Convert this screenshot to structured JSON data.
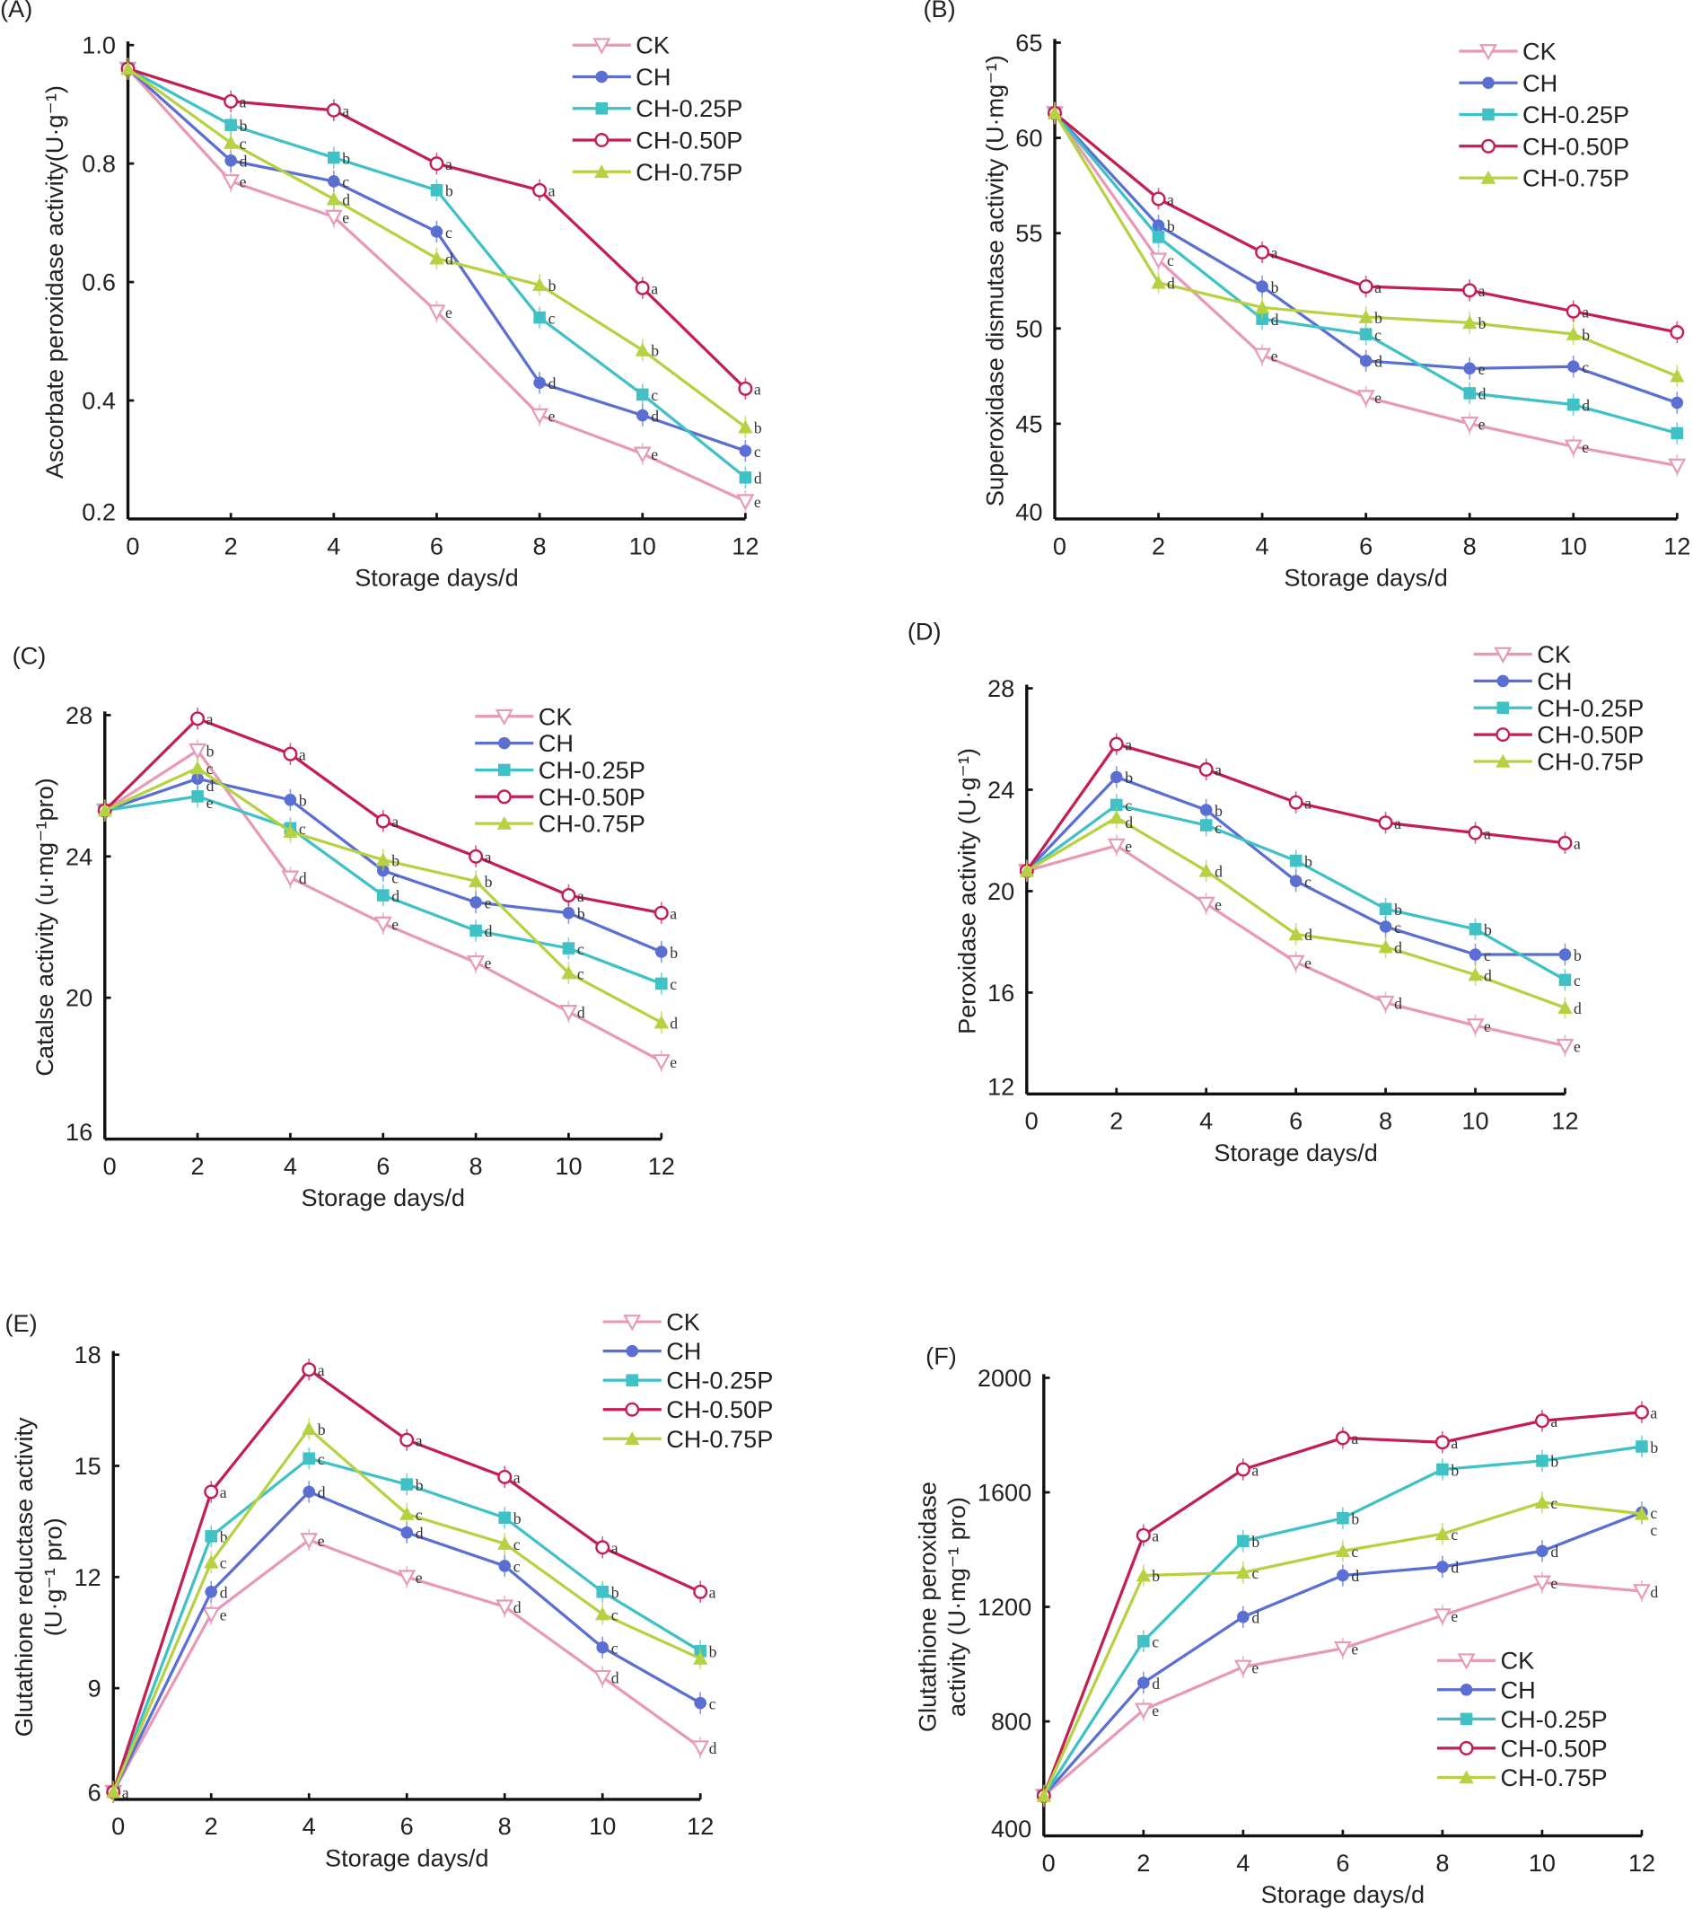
{
  "series_styles": [
    {
      "name": "CK",
      "color": "#e79ab8",
      "marker": "triangle-down-open"
    },
    {
      "name": "CH",
      "color": "#5b6fd3",
      "marker": "circle-filled"
    },
    {
      "name": "CH-0.25P",
      "color": "#3fc1c6",
      "marker": "square-filled"
    },
    {
      "name": "CH-0.50P",
      "color": "#c41f52",
      "marker": "circle-open"
    },
    {
      "name": "CH-0.75P",
      "color": "#b6d243",
      "marker": "triangle-up-filled"
    }
  ],
  "chart_data": [
    {
      "type": "line",
      "panel_label": "(A)",
      "xlabel": "Storage days/d",
      "ylabel": [
        "Ascorbate peroxidase activity(U·g⁻¹)"
      ],
      "x": [
        0,
        2,
        4,
        6,
        8,
        10,
        12
      ],
      "xticks": [
        "0",
        "2",
        "4",
        "6",
        "8",
        "10",
        "12"
      ],
      "ylim": [
        0.2,
        1.0
      ],
      "yticks": [
        "0.2",
        "0.4",
        "0.6",
        "0.8",
        "1.0"
      ],
      "legend": "top-right",
      "grid": false,
      "series": [
        {
          "name": "CK",
          "values": [
            0.96,
            0.77,
            0.71,
            0.55,
            0.375,
            0.31,
            0.23
          ],
          "letters": [
            "",
            "e",
            "e",
            "e",
            "e",
            "e",
            "e"
          ]
        },
        {
          "name": "CH",
          "values": [
            0.96,
            0.805,
            0.77,
            0.685,
            0.43,
            0.375,
            0.315
          ],
          "letters": [
            "",
            "d",
            "c",
            "c",
            "d",
            "d",
            "c"
          ]
        },
        {
          "name": "CH-0.25P",
          "values": [
            0.96,
            0.865,
            0.81,
            0.755,
            0.54,
            0.41,
            0.27
          ],
          "letters": [
            "",
            "b",
            "b",
            "b",
            "c",
            "c",
            "d"
          ]
        },
        {
          "name": "CH-0.50P",
          "values": [
            0.96,
            0.905,
            0.89,
            0.8,
            0.755,
            0.59,
            0.42
          ],
          "letters": [
            "",
            "a",
            "a",
            "a",
            "a",
            "a",
            "a"
          ]
        },
        {
          "name": "CH-0.75P",
          "values": [
            0.96,
            0.835,
            0.74,
            0.64,
            0.595,
            0.485,
            0.355
          ],
          "letters": [
            "",
            "c",
            "d",
            "d",
            "b",
            "b",
            "b"
          ]
        }
      ]
    },
    {
      "type": "line",
      "panel_label": "(B)",
      "xlabel": "Storage days/d",
      "ylabel": [
        "Superoxidase dismutase activity (U·mg⁻¹)"
      ],
      "x": [
        0,
        2,
        4,
        6,
        8,
        10,
        12
      ],
      "xticks": [
        "0",
        "2",
        "4",
        "6",
        "8",
        "10",
        "12"
      ],
      "ylim": [
        40,
        65
      ],
      "yticks": [
        "40",
        "45",
        "50",
        "55",
        "60",
        "65"
      ],
      "legend": "top-right",
      "grid": false,
      "series": [
        {
          "name": "CK",
          "values": [
            61.3,
            53.6,
            48.6,
            46.4,
            45.0,
            43.8,
            42.8
          ],
          "letters": [
            "",
            "c",
            "e",
            "e",
            "e",
            "e",
            ""
          ]
        },
        {
          "name": "CH",
          "values": [
            61.3,
            55.4,
            52.2,
            48.3,
            47.9,
            48.0,
            46.1
          ],
          "letters": [
            "",
            "b",
            "b",
            "d",
            "e",
            "c",
            ""
          ]
        },
        {
          "name": "CH-0.25P",
          "values": [
            61.3,
            54.8,
            50.5,
            49.7,
            46.6,
            46.0,
            44.5
          ],
          "letters": [
            "",
            "",
            "d",
            "c",
            "d",
            "d",
            ""
          ]
        },
        {
          "name": "CH-0.50P",
          "values": [
            61.3,
            56.8,
            54.0,
            52.2,
            52.0,
            50.9,
            49.8
          ],
          "letters": [
            "",
            "a",
            "a",
            "a",
            "a",
            "a",
            ""
          ]
        },
        {
          "name": "CH-0.75P",
          "values": [
            61.3,
            52.4,
            51.1,
            50.6,
            50.3,
            49.7,
            47.5
          ],
          "letters": [
            "",
            "d",
            "",
            "b",
            "b",
            "b",
            ""
          ]
        }
      ]
    },
    {
      "type": "line",
      "panel_label": "(C)",
      "xlabel": "Storage days/d",
      "ylabel": [
        "Catalse activity (u·mg⁻¹pro)"
      ],
      "x": [
        0,
        2,
        4,
        6,
        8,
        10,
        12
      ],
      "xticks": [
        "0",
        "2",
        "4",
        "6",
        "8",
        "10",
        "12"
      ],
      "ylim": [
        16,
        28
      ],
      "yticks": [
        "16",
        "20",
        "24",
        "28"
      ],
      "legend": "top-right",
      "grid": false,
      "series": [
        {
          "name": "CK",
          "values": [
            25.3,
            27.0,
            23.4,
            22.1,
            21.0,
            19.6,
            18.2
          ],
          "letters": [
            "",
            "b",
            "d",
            "e",
            "e",
            "d",
            "e"
          ]
        },
        {
          "name": "CH",
          "values": [
            25.3,
            26.2,
            25.6,
            23.6,
            22.7,
            22.4,
            21.3
          ],
          "letters": [
            "",
            "d",
            "b",
            "c",
            "e",
            "b",
            "b"
          ]
        },
        {
          "name": "CH-0.25P",
          "values": [
            25.3,
            25.7,
            24.8,
            22.9,
            21.9,
            21.4,
            20.4
          ],
          "letters": [
            "",
            "e",
            "c",
            "d",
            "d",
            "c",
            "c"
          ]
        },
        {
          "name": "CH-0.50P",
          "values": [
            25.3,
            27.9,
            26.9,
            25.0,
            24.0,
            22.9,
            22.4
          ],
          "letters": [
            "",
            "a",
            "a",
            "a",
            "a",
            "a",
            "a"
          ]
        },
        {
          "name": "CH-0.75P",
          "values": [
            25.3,
            26.5,
            24.7,
            23.9,
            23.3,
            20.7,
            19.3
          ],
          "letters": [
            "",
            "c",
            "",
            "b",
            "b",
            "c",
            "d"
          ]
        }
      ]
    },
    {
      "type": "line",
      "panel_label": "(D)",
      "xlabel": "Storage days/d",
      "ylabel": [
        "Peroxidase activity (U·g⁻¹)"
      ],
      "x": [
        0,
        2,
        4,
        6,
        8,
        10,
        12
      ],
      "xticks": [
        "0",
        "2",
        "4",
        "6",
        "8",
        "10",
        "12"
      ],
      "ylim": [
        12,
        28
      ],
      "yticks": [
        "12",
        "16",
        "20",
        "24",
        "28"
      ],
      "legend": "top-right",
      "grid": false,
      "series": [
        {
          "name": "CK",
          "values": [
            20.8,
            21.8,
            19.5,
            17.2,
            15.6,
            14.7,
            13.9
          ],
          "letters": [
            "",
            "e",
            "e",
            "e",
            "d",
            "e",
            "e"
          ]
        },
        {
          "name": "CH",
          "values": [
            20.8,
            24.5,
            23.2,
            20.4,
            18.6,
            17.5,
            17.5
          ],
          "letters": [
            "",
            "b",
            "b",
            "c",
            "c",
            "c",
            "b"
          ]
        },
        {
          "name": "CH-0.25P",
          "values": [
            20.8,
            23.4,
            22.6,
            21.2,
            19.3,
            18.5,
            16.5
          ],
          "letters": [
            "",
            "c",
            "c",
            "b",
            "b",
            "b",
            "c"
          ]
        },
        {
          "name": "CH-0.50P",
          "values": [
            20.8,
            25.8,
            24.8,
            23.5,
            22.7,
            22.3,
            21.9
          ],
          "letters": [
            "",
            "a",
            "a",
            "a",
            "a",
            "a",
            "a"
          ]
        },
        {
          "name": "CH-0.75P",
          "values": [
            20.8,
            22.9,
            20.8,
            18.3,
            17.8,
            16.7,
            15.4
          ],
          "letters": [
            "",
            "d",
            "d",
            "d",
            "d",
            "d",
            "d"
          ]
        }
      ]
    },
    {
      "type": "line",
      "panel_label": "(E)",
      "xlabel": "Storage days/d",
      "ylabel": [
        "Glutathione reductase activity",
        "(U·g⁻¹ pro)"
      ],
      "x": [
        0,
        2,
        4,
        6,
        8,
        10,
        12
      ],
      "xticks": [
        "0",
        "2",
        "4",
        "6",
        "8",
        "10",
        "12"
      ],
      "ylim": [
        6,
        18
      ],
      "yticks": [
        "6",
        "9",
        "12",
        "15",
        "18"
      ],
      "legend": "top-right",
      "grid": false,
      "series": [
        {
          "name": "CK",
          "values": [
            6.2,
            11.0,
            13.0,
            12.0,
            11.2,
            9.3,
            7.4
          ],
          "letters": [
            "a",
            "e",
            "e",
            "e",
            "d",
            "d",
            "d"
          ]
        },
        {
          "name": "CH",
          "values": [
            6.2,
            11.6,
            14.3,
            13.2,
            12.3,
            10.1,
            8.6
          ],
          "letters": [
            "",
            "d",
            "d",
            "d",
            "c",
            "c",
            "c"
          ]
        },
        {
          "name": "CH-0.25P",
          "values": [
            6.2,
            13.1,
            15.2,
            14.5,
            13.6,
            11.6,
            10.0
          ],
          "letters": [
            "",
            "b",
            "c",
            "b",
            "b",
            "b",
            "b"
          ]
        },
        {
          "name": "CH-0.50P",
          "values": [
            6.2,
            14.3,
            17.6,
            15.7,
            14.7,
            12.8,
            11.6
          ],
          "letters": [
            "",
            "a",
            "a",
            "a",
            "a",
            "a",
            "a"
          ]
        },
        {
          "name": "CH-0.75P",
          "values": [
            6.2,
            12.4,
            16.0,
            13.7,
            12.9,
            11.0,
            9.8
          ],
          "letters": [
            "",
            "c",
            "b",
            "c",
            "c",
            "c",
            ""
          ]
        }
      ]
    },
    {
      "type": "line",
      "panel_label": "(F)",
      "xlabel": "Storage days/d",
      "ylabel": [
        "Glutathione peroxidase",
        "activity (U·mg⁻¹ pro)"
      ],
      "x": [
        0,
        2,
        4,
        6,
        8,
        10,
        12
      ],
      "xticks": [
        "0",
        "2",
        "4",
        "6",
        "8",
        "10",
        "12"
      ],
      "ylim": [
        400,
        2000
      ],
      "yticks": [
        "400",
        "800",
        "1200",
        "1600",
        "2000"
      ],
      "legend": "bottom-right",
      "grid": false,
      "series": [
        {
          "name": "CK",
          "values": [
            540,
            840,
            990,
            1055,
            1170,
            1285,
            1255
          ],
          "letters": [
            "",
            "e",
            "e",
            "e",
            "e",
            "e",
            "d"
          ]
        },
        {
          "name": "CH",
          "values": [
            540,
            935,
            1165,
            1310,
            1340,
            1395,
            1530
          ],
          "letters": [
            "",
            "d",
            "d",
            "d",
            "d",
            "d",
            "c"
          ]
        },
        {
          "name": "CH-0.25P",
          "values": [
            540,
            1080,
            1430,
            1510,
            1680,
            1710,
            1760
          ],
          "letters": [
            "",
            "c",
            "b",
            "b",
            "b",
            "b",
            "b"
          ]
        },
        {
          "name": "CH-0.50P",
          "values": [
            540,
            1450,
            1680,
            1790,
            1775,
            1850,
            1880
          ],
          "letters": [
            "",
            "a",
            "a",
            "a",
            "a",
            "a",
            "a"
          ]
        },
        {
          "name": "CH-0.75P",
          "values": [
            540,
            1310,
            1320,
            1395,
            1455,
            1565,
            1525
          ],
          "letters": [
            "",
            "b",
            "c",
            "c",
            "c",
            "c",
            "c"
          ]
        }
      ]
    }
  ]
}
